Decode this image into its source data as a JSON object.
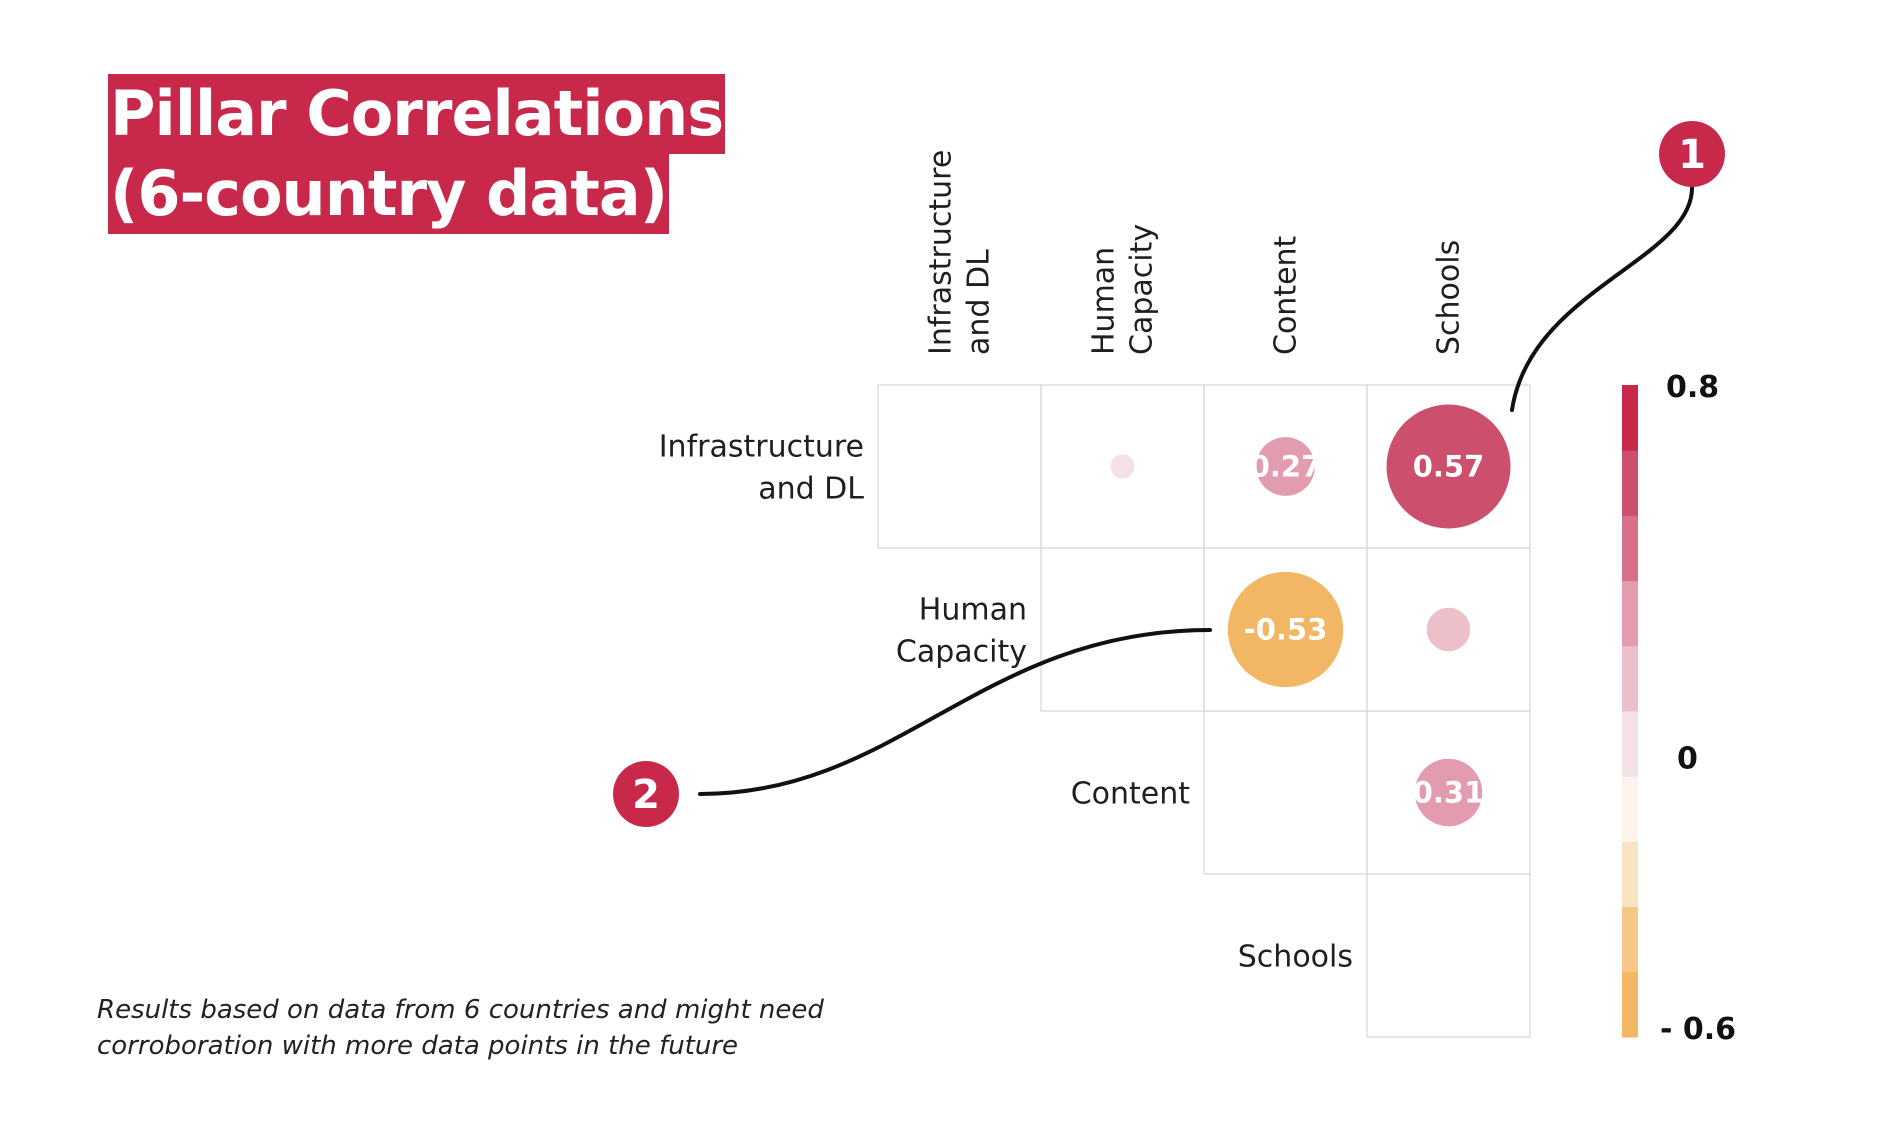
{
  "title_lines": [
    "Pillar Correlations",
    "(6-country data)"
  ],
  "footnote_lines": [
    "Results based on data from 6 countries and might need",
    "corroboration with more data points in the future"
  ],
  "chart_data": {
    "type": "heatmap",
    "variables": [
      [
        "Infrastructure",
        "and DL"
      ],
      [
        "Human",
        "Capacity"
      ],
      [
        "Content"
      ],
      [
        "Schools"
      ]
    ],
    "cells": [
      {
        "row": 0,
        "col": 1,
        "value": 0.05,
        "label": ""
      },
      {
        "row": 0,
        "col": 2,
        "value": 0.27,
        "label": "0.27"
      },
      {
        "row": 0,
        "col": 3,
        "value": 0.57,
        "label": "0.57"
      },
      {
        "row": 1,
        "col": 2,
        "value": -0.53,
        "label": "-0.53"
      },
      {
        "row": 1,
        "col": 3,
        "value": 0.2,
        "label": ""
      },
      {
        "row": 2,
        "col": 3,
        "value": 0.31,
        "label": "0.31"
      }
    ],
    "color_scale": {
      "min": -0.6,
      "max": 0.8,
      "tick_labels": {
        "max": "0.8",
        "mid": "0",
        "min": "- 0.6"
      },
      "colors": [
        "#f2b765",
        "#f5c88a",
        "#f9e2c2",
        "#fcf3ea",
        "#f4e1e6",
        "#ecbfcb",
        "#e39bb0",
        "#d8708b",
        "#cc4f6e",
        "#c8284a"
      ]
    },
    "callouts": [
      "1",
      "2"
    ]
  },
  "colors": {
    "accent": "#c8284a",
    "grid": "#dddddd",
    "negative": "#f2b765"
  }
}
